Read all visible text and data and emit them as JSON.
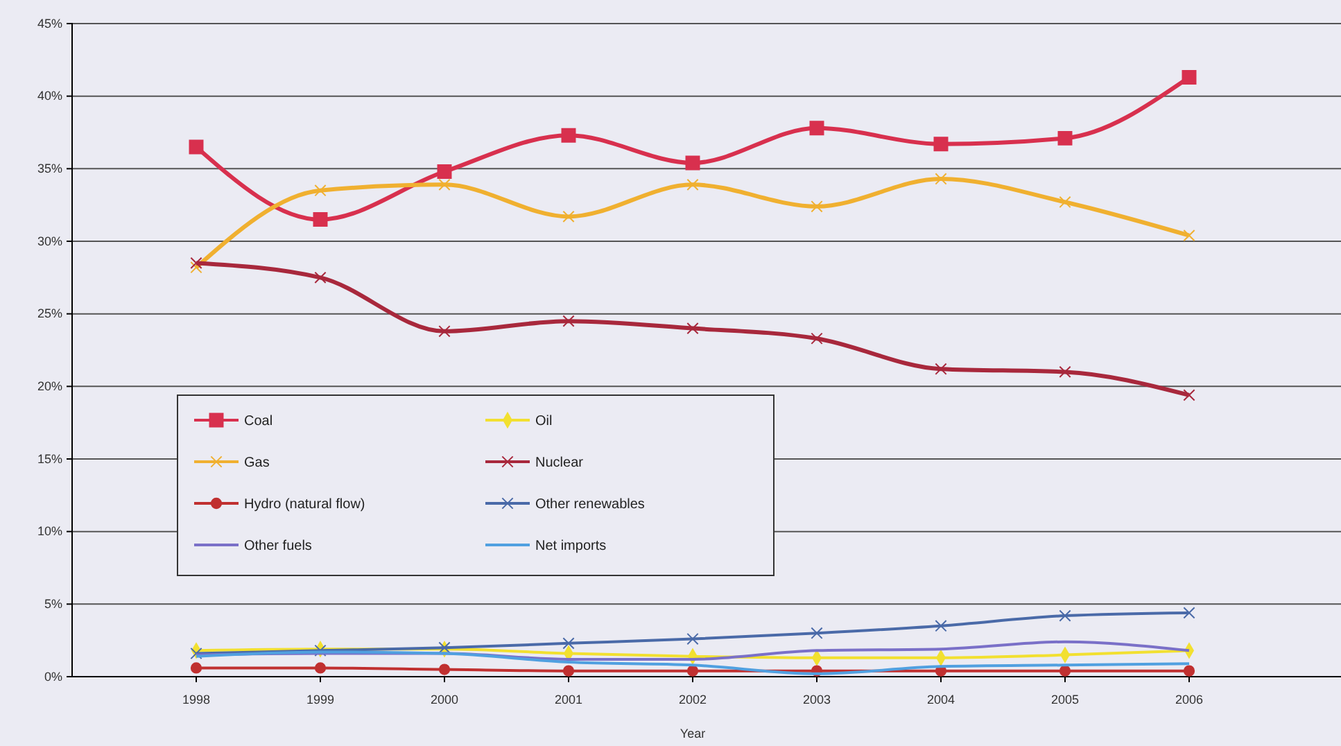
{
  "chart_data": {
    "type": "line",
    "xlabel": "Year",
    "categories": [
      "1998",
      "1999",
      "2000",
      "2001",
      "2002",
      "2003",
      "2004",
      "2005",
      "2006"
    ],
    "ylim": [
      0,
      45
    ],
    "yticks": [
      {
        "value": 0,
        "label": "0%"
      },
      {
        "value": 5,
        "label": "5%"
      },
      {
        "value": 10,
        "label": "10%"
      },
      {
        "value": 15,
        "label": "15%"
      },
      {
        "value": 20,
        "label": "20%"
      },
      {
        "value": 25,
        "label": "25%"
      },
      {
        "value": 30,
        "label": "30%"
      },
      {
        "value": 35,
        "label": "35%"
      },
      {
        "value": 40,
        "label": "40%"
      },
      {
        "value": 45,
        "label": "45%"
      }
    ],
    "grid": "y",
    "legend": "bottom left",
    "series": [
      {
        "name": "Coal",
        "color": "#d8304e",
        "marker": "square",
        "values": [
          36.5,
          31.5,
          34.8,
          37.3,
          35.4,
          37.8,
          36.7,
          37.1,
          41.3
        ]
      },
      {
        "name": "Oil",
        "color": "#f2e030",
        "marker": "diamond",
        "values": [
          1.8,
          1.9,
          1.9,
          1.6,
          1.4,
          1.3,
          1.3,
          1.5,
          1.8
        ]
      },
      {
        "name": "Gas",
        "color": "#f0b030",
        "marker": "cross",
        "values": [
          28.2,
          33.5,
          33.9,
          31.7,
          33.9,
          32.4,
          34.3,
          32.7,
          30.4
        ]
      },
      {
        "name": "Nuclear",
        "color": "#a8283c",
        "marker": "cross",
        "values": [
          28.5,
          27.5,
          23.8,
          24.5,
          24.0,
          23.3,
          21.2,
          21.0,
          19.4
        ]
      },
      {
        "name": "Hydro (natural flow)",
        "color": "#c03030",
        "marker": "circle",
        "values": [
          0.6,
          0.6,
          0.5,
          0.4,
          0.4,
          0.4,
          0.4,
          0.4,
          0.4
        ]
      },
      {
        "name": "Other renewables",
        "color": "#4a6aa8",
        "marker": "cross",
        "values": [
          1.6,
          1.8,
          2.0,
          2.3,
          2.6,
          3.0,
          3.5,
          4.2,
          4.4
        ]
      },
      {
        "name": "Other fuels",
        "color": "#7a70c8",
        "marker": "none",
        "values": [
          1.5,
          1.6,
          1.6,
          1.2,
          1.2,
          1.8,
          1.9,
          2.4,
          1.8
        ]
      },
      {
        "name": "Net imports",
        "color": "#50a0e0",
        "marker": "none",
        "values": [
          1.4,
          1.7,
          1.6,
          1.0,
          0.8,
          0.2,
          0.7,
          0.8,
          0.9
        ]
      }
    ]
  }
}
